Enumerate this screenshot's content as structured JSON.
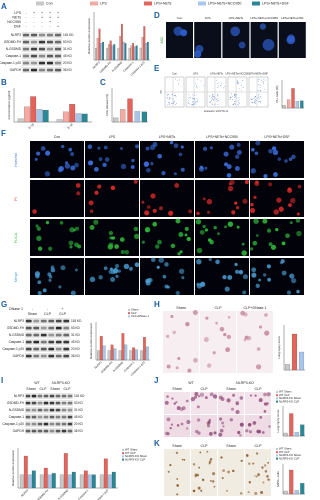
{
  "legend": {
    "items": [
      {
        "name": "Con",
        "color": "#c8c8c8"
      },
      {
        "name": "LPS",
        "color": "#f4aaa3"
      },
      {
        "name": "LPS+NETs",
        "color": "#e4645c"
      },
      {
        "name": "LPS+NETs+NCC950",
        "color": "#a8c6ea"
      },
      {
        "name": "LPS+NETs+DSF",
        "color": "#2a8796"
      }
    ]
  },
  "panel_a": {
    "letter": "A",
    "treatments": [
      {
        "name": "LPS",
        "signs": [
          "-",
          "+",
          "+",
          "+",
          "+"
        ]
      },
      {
        "name": "NETs",
        "signs": [
          "-",
          "-",
          "+",
          "+",
          "+"
        ]
      },
      {
        "name": "NCC950",
        "signs": [
          "-",
          "-",
          "-",
          "+",
          "-"
        ]
      },
      {
        "name": "DSF",
        "signs": [
          "-",
          "-",
          "-",
          "-",
          "+"
        ]
      }
    ],
    "blot": [
      {
        "protein": "NLRP3",
        "size": "118 KD"
      },
      {
        "protein": "GSDMD-FH",
        "size": "53 KD"
      },
      {
        "protein": "N-GSDMD",
        "size": "31 KD"
      },
      {
        "protein": "Caspase-1",
        "size": "45 KD"
      },
      {
        "protein": "Caspase-1 p20",
        "size": "20 KD"
      },
      {
        "protein": "GAPDH",
        "size": "36 KD"
      }
    ],
    "chart": {
      "ylabel": "Relative protein expression",
      "categories": [
        "NLRP3",
        "GSDMD-FH",
        "N-GSDMD",
        "Caspase-1",
        "Caspase-1 p20"
      ],
      "ylim": [
        0,
        4
      ],
      "series": [
        {
          "values": [
            1,
            1,
            1,
            1,
            1
          ]
        },
        {
          "values": [
            1.8,
            1.3,
            2,
            1.2,
            1.9
          ]
        },
        {
          "values": [
            2.6,
            1.6,
            3,
            1.4,
            2.8
          ]
        },
        {
          "values": [
            1.4,
            1.2,
            1.5,
            1.1,
            1.4
          ]
        },
        {
          "values": [
            1.5,
            1.3,
            1.4,
            1.2,
            1.5
          ]
        }
      ]
    }
  },
  "panel_b": {
    "letter": "B",
    "chart": {
      "ylabel": "Concentration (pg/ml)",
      "categories": [
        "IL-1β",
        "IL-18"
      ],
      "ylim": [
        0,
        400
      ],
      "series": [
        {
          "values": [
            40,
            30
          ]
        },
        {
          "values": [
            180,
            120
          ]
        },
        {
          "values": [
            300,
            210
          ]
        },
        {
          "values": [
            150,
            100
          ]
        },
        {
          "values": [
            140,
            95
          ]
        }
      ]
    }
  },
  "panel_c": {
    "letter": "C",
    "chart": {
      "ylabel": "LDH release (%)",
      "values": [
        10,
        30,
        55,
        25,
        24
      ],
      "ylim": [
        0,
        80
      ]
    }
  },
  "panel_d": {
    "letter": "D",
    "stain": "ASC",
    "columns": [
      "Con",
      "LPS",
      "LPS+NETs",
      "LPS+NETs+NCC950",
      "LPS+NETs+DSF"
    ]
  },
  "panel_e": {
    "letter": "E",
    "columns": [
      "Con",
      "LPS",
      "LPS+NETs",
      "LPS+NETs+NCC950",
      "LPS+NETs+DSF"
    ],
    "xlabel": "Annexin V-FITC-A",
    "ylabel": "PI",
    "chart": {
      "ylabel": "PI+ cells (%)",
      "values": [
        5,
        15,
        35,
        12,
        13
      ],
      "ylim": [
        0,
        50
      ]
    }
  },
  "panel_f": {
    "letter": "F",
    "columns": [
      "Con",
      "LPS",
      "LPS+NETs",
      "LPS+NETs+NCC950",
      "LPS+NETs+DSF"
    ],
    "rows": [
      {
        "name": "Hoechst",
        "color": "#3a6fe0"
      },
      {
        "name": "PI",
        "color": "#e02a2a"
      },
      {
        "name": "FLICA",
        "color": "#2fbf3a"
      },
      {
        "name": "Merge",
        "color": "#4aa0d8"
      }
    ]
  },
  "panel_g": {
    "letter": "G",
    "treatment": {
      "name": "DNase 1",
      "signs": [
        "-",
        "-",
        "+"
      ]
    },
    "groups": [
      "Sham",
      "CLP",
      "CLP"
    ],
    "blot": [
      {
        "protein": "NLRP3",
        "size": "118 KD"
      },
      {
        "protein": "GSDMD-FH",
        "size": "53 KD"
      },
      {
        "protein": "N-GSDMD",
        "size": "31 KD"
      },
      {
        "protein": "Caspase-1",
        "size": "45 KD"
      },
      {
        "protein": "Caspase-1 p20",
        "size": "20 KD"
      },
      {
        "protein": "GAPDH",
        "size": "36 KD"
      }
    ],
    "legend": [
      {
        "name": "Sham",
        "color": "#c8c8c8"
      },
      {
        "name": "CLP",
        "color": "#e4645c"
      },
      {
        "name": "CLP+DNase 1",
        "color": "#a8c6ea"
      }
    ],
    "chart": {
      "ylabel": "Relative protein expression",
      "categories": [
        "NLRP3",
        "GSDMD-FH",
        "N-GSDMD",
        "Caspase-1",
        "Caspase-1 p20"
      ],
      "ylim": [
        0,
        4
      ],
      "series": [
        {
          "values": [
            1,
            1,
            1,
            1,
            1
          ]
        },
        {
          "values": [
            2.5,
            1.6,
            2.8,
            1.3,
            2.4
          ]
        },
        {
          "values": [
            1.5,
            1.2,
            1.6,
            1.1,
            1.4
          ]
        }
      ]
    }
  },
  "panel_h": {
    "letter": "H",
    "columns": [
      "Sham",
      "CLP",
      "CLP+DNase 1"
    ],
    "chart": {
      "ylabel": "Lung injury score",
      "values": [
        0.5,
        3.2,
        1.6
      ],
      "ylim": [
        0,
        4
      ]
    }
  },
  "panel_i": {
    "letter": "I",
    "genotypes": [
      "WT",
      "NLRP3-KO"
    ],
    "groups": [
      "Sham",
      "CLP",
      "Sham",
      "CLP"
    ],
    "blot": [
      {
        "protein": "NLRP3",
        "size": "118 KD"
      },
      {
        "protein": "GSDMD-FH",
        "size": "53 KD"
      },
      {
        "protein": "N-GSDMD",
        "size": "31 KD"
      },
      {
        "protein": "Caspase-1",
        "size": "45 KD"
      },
      {
        "protein": "Caspase-1 p20",
        "size": "20 KD"
      },
      {
        "protein": "GAPDH",
        "size": "36 KD"
      }
    ],
    "legend": [
      {
        "name": "WT Sham",
        "color": "#c8c8c8"
      },
      {
        "name": "WT CLP",
        "color": "#e4645c"
      },
      {
        "name": "NLRP3-KO Sham",
        "color": "#a8c6ea"
      },
      {
        "name": "NLRP3-KO CLP",
        "color": "#2a8796"
      }
    ],
    "chart": {
      "ylabel": "Relative protein expression",
      "categories": [
        "NLRP3",
        "GSDMD-FH",
        "N-GSDMD",
        "Caspase-1",
        "Caspase-1 p20"
      ],
      "ylim": [
        0,
        3
      ],
      "series": [
        {
          "values": [
            1,
            1,
            1,
            1,
            1
          ]
        },
        {
          "values": [
            2.4,
            1.5,
            2.6,
            1.3,
            2.2
          ]
        },
        {
          "values": [
            1,
            1,
            1,
            1,
            1
          ]
        },
        {
          "values": [
            1.3,
            1.1,
            1.2,
            1,
            1.2
          ]
        }
      ]
    }
  },
  "panel_j": {
    "letter": "J",
    "genotypes": [
      "WT",
      "NLRP3-KO"
    ],
    "groups": [
      "Sham",
      "CLP",
      "Sham",
      "CLP"
    ],
    "chart": {
      "ylabel": "Lung injury score",
      "values": [
        0.4,
        3,
        0.5,
        1.5
      ],
      "ylim": [
        0,
        4
      ]
    }
  },
  "panel_k": {
    "letter": "K",
    "groups": [
      "Sham",
      "CLP",
      "Sham",
      "CLP"
    ],
    "chart": {
      "ylabel": "MPO+ cells",
      "values": [
        5,
        40,
        6,
        18
      ],
      "ylim": [
        0,
        50
      ]
    }
  }
}
